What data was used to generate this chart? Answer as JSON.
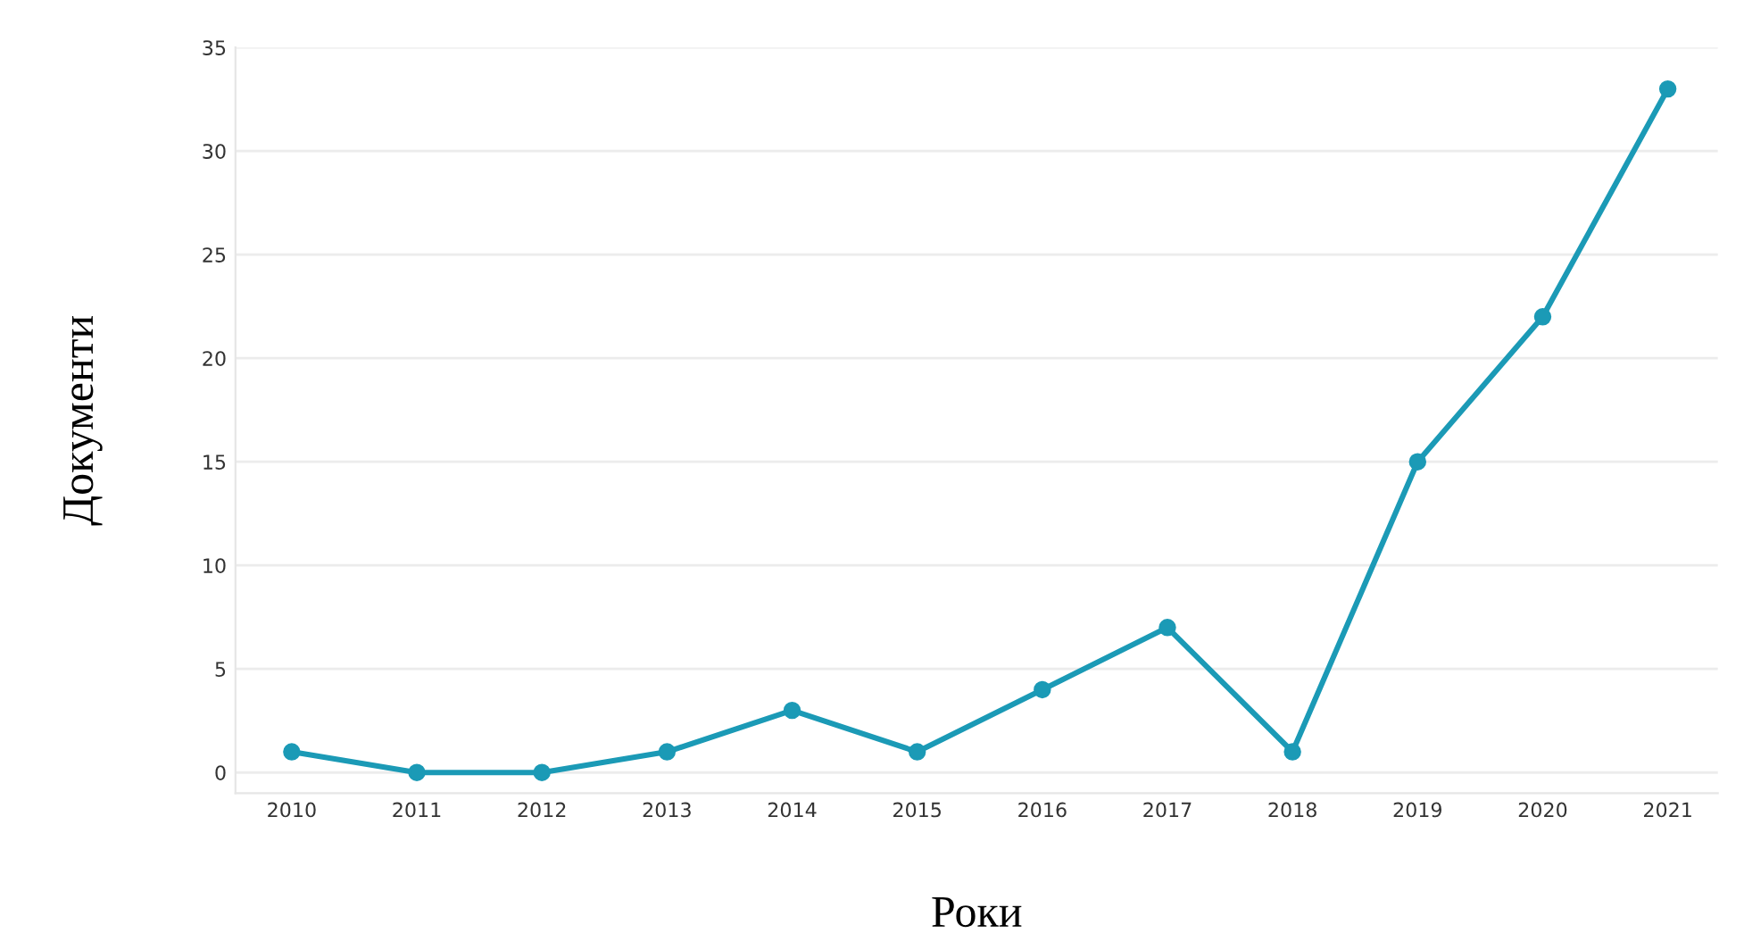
{
  "chart_data": {
    "type": "line",
    "xlabel": "Роки",
    "ylabel": "Документи",
    "categories": [
      "2010",
      "2011",
      "2012",
      "2013",
      "2014",
      "2015",
      "2016",
      "2017",
      "2018",
      "2019",
      "2020",
      "2021"
    ],
    "series": [
      {
        "color": "#1b9ab6",
        "values": [
          1,
          0,
          0,
          1,
          3,
          1,
          4,
          7,
          1,
          15,
          22,
          33
        ]
      }
    ],
    "ylim": [
      -1,
      35
    ],
    "yticks": [
      0,
      5,
      10,
      15,
      20,
      25,
      30,
      35
    ],
    "grid": "y",
    "marker": "circle",
    "line_style": "solid"
  }
}
